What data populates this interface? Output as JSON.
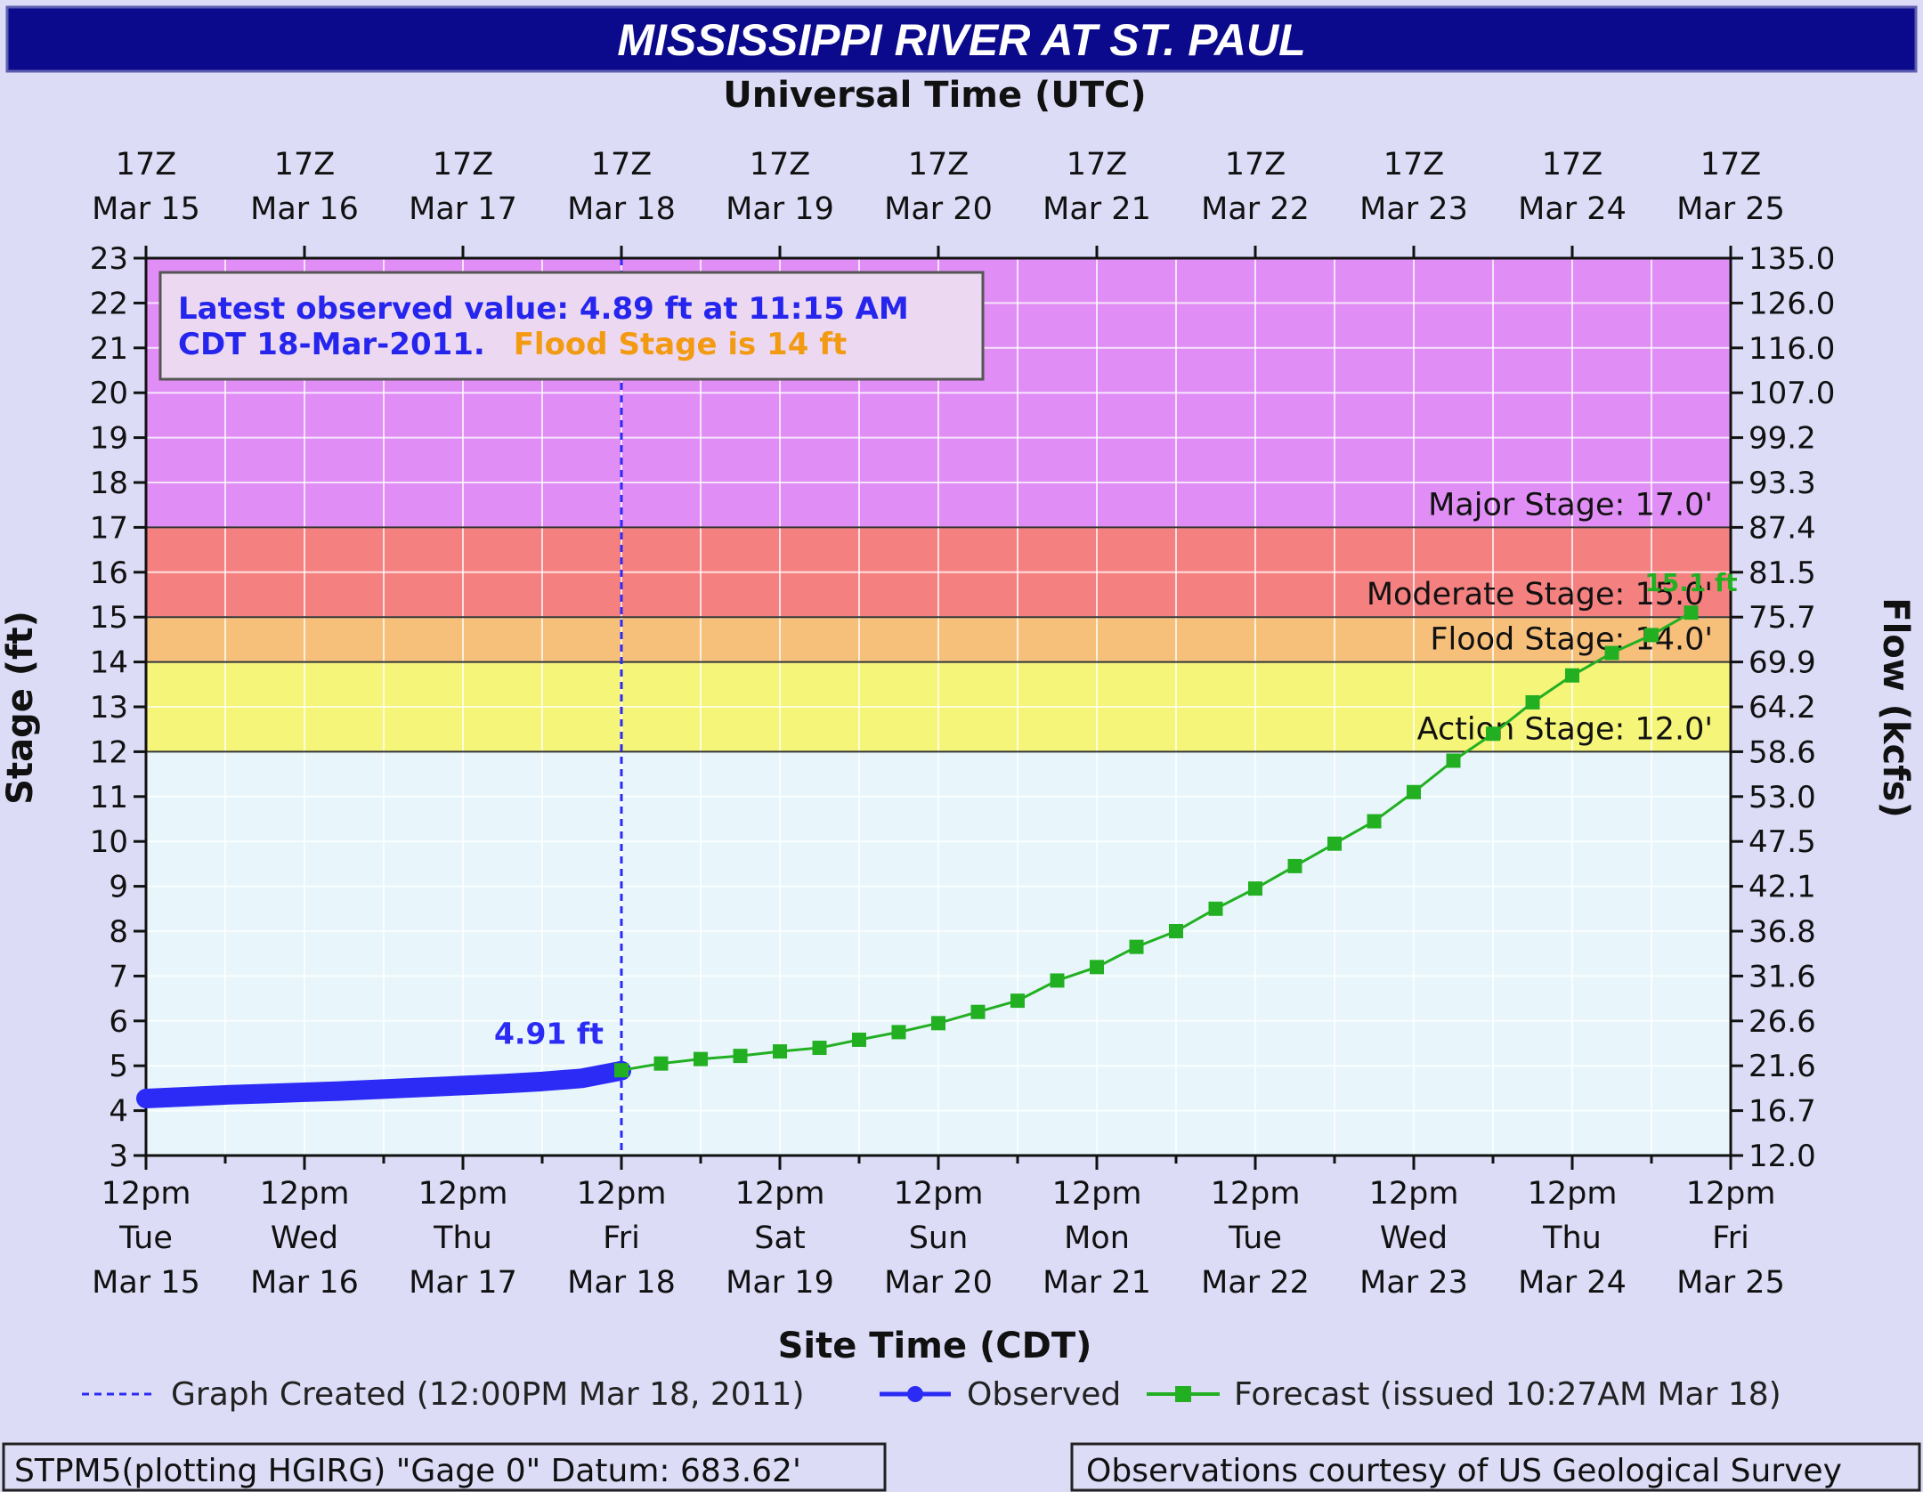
{
  "chart_data": {
    "type": "line",
    "title": "MISSISSIPPI RIVER AT ST. PAUL",
    "top_axis_title": "Universal Time (UTC)",
    "xlabel": "Site Time (CDT)",
    "ylabel": "Stage (ft)",
    "y2label": "Flow (kcfs)",
    "ylim": [
      3,
      23
    ],
    "xlim": [
      "2011-03-15 12:00",
      "2011-03-25 12:00"
    ],
    "grid": true,
    "y_ticks": [
      "3",
      "4",
      "5",
      "6",
      "7",
      "8",
      "9",
      "10",
      "11",
      "12",
      "13",
      "14",
      "15",
      "16",
      "17",
      "18",
      "19",
      "20",
      "21",
      "22",
      "23"
    ],
    "y2_ticks": [
      {
        "stage": 3,
        "flow": "12.0"
      },
      {
        "stage": 4,
        "flow": "16.7"
      },
      {
        "stage": 5,
        "flow": "21.6"
      },
      {
        "stage": 6,
        "flow": "26.6"
      },
      {
        "stage": 7,
        "flow": "31.6"
      },
      {
        "stage": 8,
        "flow": "36.8"
      },
      {
        "stage": 9,
        "flow": "42.1"
      },
      {
        "stage": 10,
        "flow": "47.5"
      },
      {
        "stage": 11,
        "flow": "53.0"
      },
      {
        "stage": 12,
        "flow": "58.6"
      },
      {
        "stage": 13,
        "flow": "64.2"
      },
      {
        "stage": 14,
        "flow": "69.9"
      },
      {
        "stage": 15,
        "flow": "75.7"
      },
      {
        "stage": 16,
        "flow": "81.5"
      },
      {
        "stage": 17,
        "flow": "87.4"
      },
      {
        "stage": 18,
        "flow": "93.3"
      },
      {
        "stage": 19,
        "flow": "99.2"
      },
      {
        "stage": 20,
        "flow": "107.0"
      },
      {
        "stage": 21,
        "flow": "116.0"
      },
      {
        "stage": 22,
        "flow": "126.0"
      },
      {
        "stage": 23,
        "flow": "135.0"
      }
    ],
    "top_ticks": [
      {
        "day": 0,
        "l1": "17Z",
        "l2": "Mar 15"
      },
      {
        "day": 1,
        "l1": "17Z",
        "l2": "Mar 16"
      },
      {
        "day": 2,
        "l1": "17Z",
        "l2": "Mar 17"
      },
      {
        "day": 3,
        "l1": "17Z",
        "l2": "Mar 18"
      },
      {
        "day": 4,
        "l1": "17Z",
        "l2": "Mar 19"
      },
      {
        "day": 5,
        "l1": "17Z",
        "l2": "Mar 20"
      },
      {
        "day": 6,
        "l1": "17Z",
        "l2": "Mar 21"
      },
      {
        "day": 7,
        "l1": "17Z",
        "l2": "Mar 22"
      },
      {
        "day": 8,
        "l1": "17Z",
        "l2": "Mar 23"
      },
      {
        "day": 9,
        "l1": "17Z",
        "l2": "Mar 24"
      },
      {
        "day": 10,
        "l1": "17Z",
        "l2": "Mar 25"
      }
    ],
    "bottom_ticks": [
      {
        "day": 0,
        "l1": "12pm",
        "l2": "Tue",
        "l3": "Mar 15"
      },
      {
        "day": 1,
        "l1": "12pm",
        "l2": "Wed",
        "l3": "Mar 16"
      },
      {
        "day": 2,
        "l1": "12pm",
        "l2": "Thu",
        "l3": "Mar 17"
      },
      {
        "day": 3,
        "l1": "12pm",
        "l2": "Fri",
        "l3": "Mar 18"
      },
      {
        "day": 4,
        "l1": "12pm",
        "l2": "Sat",
        "l3": "Mar 19"
      },
      {
        "day": 5,
        "l1": "12pm",
        "l2": "Sun",
        "l3": "Mar 20"
      },
      {
        "day": 6,
        "l1": "12pm",
        "l2": "Mon",
        "l3": "Mar 21"
      },
      {
        "day": 7,
        "l1": "12pm",
        "l2": "Tue",
        "l3": "Mar 22"
      },
      {
        "day": 8,
        "l1": "12pm",
        "l2": "Wed",
        "l3": "Mar 23"
      },
      {
        "day": 9,
        "l1": "12pm",
        "l2": "Thu",
        "l3": "Mar 24"
      },
      {
        "day": 10,
        "l1": "12pm",
        "l2": "Fri",
        "l3": "Mar 25"
      }
    ],
    "bands": [
      {
        "name": "below-action",
        "from": 3,
        "to": 12,
        "color": "#e8f6fb"
      },
      {
        "name": "action",
        "from": 12,
        "to": 14,
        "color": "#f5f57a",
        "label": "Action Stage: 12.0'"
      },
      {
        "name": "flood",
        "from": 14,
        "to": 15,
        "color": "#f7c07a",
        "label": "Flood Stage: 14.0'"
      },
      {
        "name": "moderate",
        "from": 15,
        "to": 17,
        "color": "#f58080",
        "label": "Moderate Stage: 15.0'"
      },
      {
        "name": "major",
        "from": 17,
        "to": 23,
        "color": "#e08ef5",
        "label": "Major Stage: 17.0'"
      }
    ],
    "graph_created_day": 3,
    "series": [
      {
        "name": "Observed",
        "color": "#2b2bf5",
        "points": [
          [
            0.0,
            4.27
          ],
          [
            0.25,
            4.31
          ],
          [
            0.5,
            4.35
          ],
          [
            0.75,
            4.38
          ],
          [
            1.0,
            4.41
          ],
          [
            1.25,
            4.44
          ],
          [
            1.5,
            4.48
          ],
          [
            1.75,
            4.52
          ],
          [
            2.0,
            4.56
          ],
          [
            2.25,
            4.6
          ],
          [
            2.5,
            4.65
          ],
          [
            2.75,
            4.72
          ],
          [
            3.0,
            4.89
          ]
        ],
        "peak_label": "4.91 ft"
      },
      {
        "name": "Forecast (issued 10:27AM Mar 18)",
        "color": "#22b022",
        "points": [
          [
            3.0,
            4.9
          ],
          [
            3.25,
            5.05
          ],
          [
            3.5,
            5.15
          ],
          [
            3.75,
            5.22
          ],
          [
            4.0,
            5.32
          ],
          [
            4.25,
            5.4
          ],
          [
            4.5,
            5.58
          ],
          [
            4.75,
            5.75
          ],
          [
            5.0,
            5.95
          ],
          [
            5.25,
            6.2
          ],
          [
            5.5,
            6.45
          ],
          [
            5.75,
            6.9
          ],
          [
            6.0,
            7.2
          ],
          [
            6.25,
            7.65
          ],
          [
            6.5,
            8.0
          ],
          [
            6.75,
            8.5
          ],
          [
            7.0,
            8.95
          ],
          [
            7.25,
            9.45
          ],
          [
            7.5,
            9.95
          ],
          [
            7.75,
            10.45
          ],
          [
            8.0,
            11.1
          ],
          [
            8.25,
            11.8
          ],
          [
            8.5,
            12.4
          ],
          [
            8.75,
            13.1
          ],
          [
            9.0,
            13.7
          ],
          [
            9.25,
            14.2
          ],
          [
            9.5,
            14.6
          ],
          [
            9.75,
            15.1
          ]
        ],
        "peak_label": "15.1 ft"
      }
    ],
    "info_box": {
      "line1": "Latest observed value: 4.89 ft at 11:15 AM",
      "line2a": "CDT 18-Mar-2011.",
      "line2b": "Flood Stage is 14 ft"
    },
    "legend": {
      "created": "Graph Created (12:00PM Mar 18, 2011)",
      "observed": "Observed",
      "forecast": "Forecast (issued 10:27AM Mar 18)"
    },
    "footer": {
      "left": "STPM5(plotting HGIRG) \"Gage 0\" Datum: 683.62'",
      "right": "Observations courtesy of US Geological Survey"
    }
  }
}
